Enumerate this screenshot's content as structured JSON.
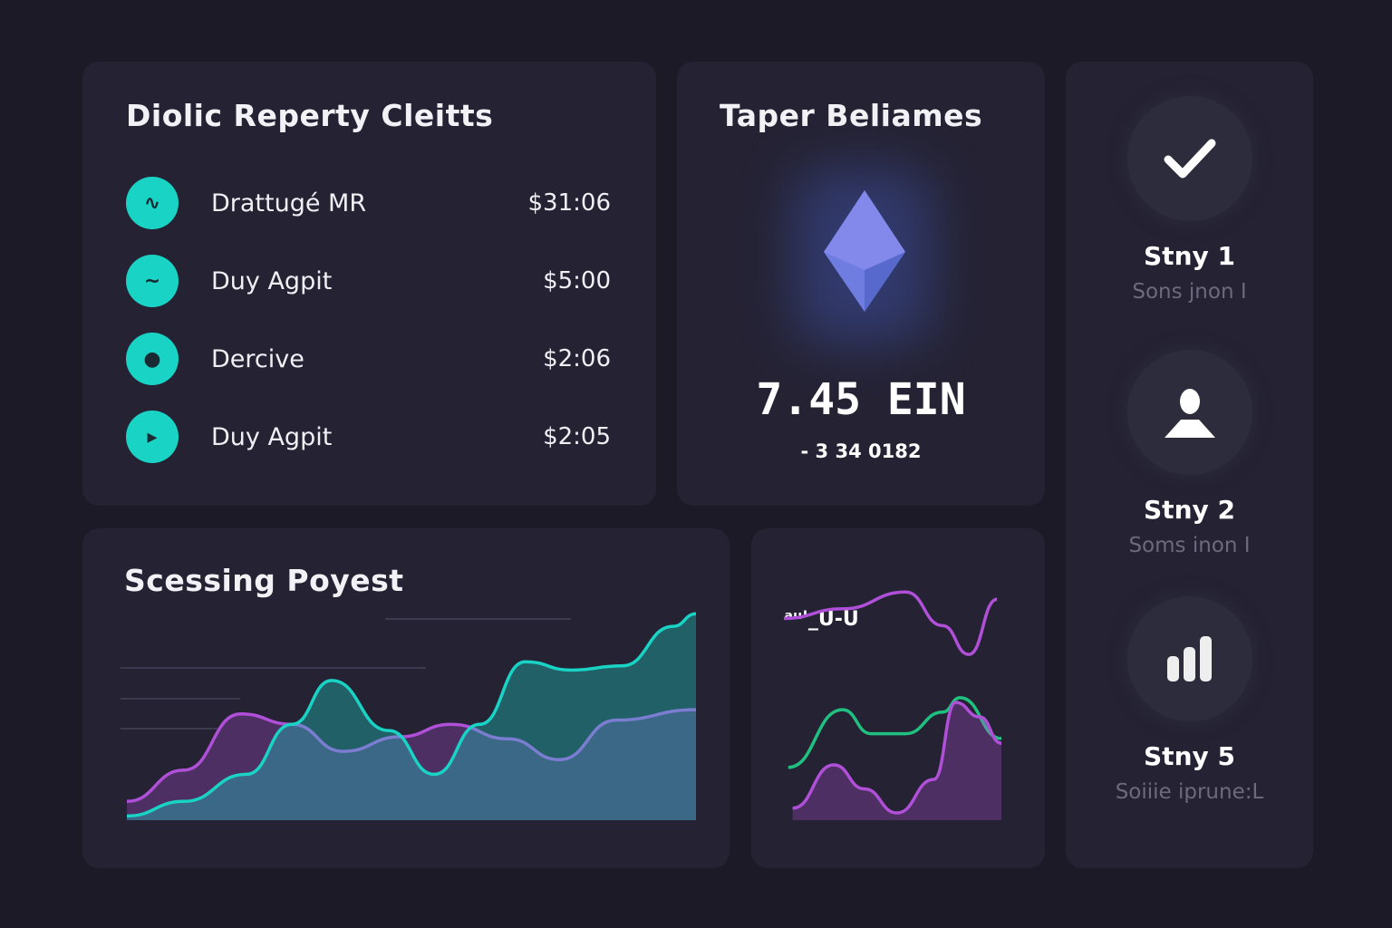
{
  "clients_panel": {
    "title": "Diolic Reperty Cleitts",
    "items": [
      {
        "icon": "wave-icon",
        "label": "Drattugé MR",
        "amount": "$31:06"
      },
      {
        "icon": "swirl-icon",
        "label": "Duy Agpit",
        "amount": "$5:00"
      },
      {
        "icon": "dot-icon",
        "label": "Dercive",
        "amount": "$2:06"
      },
      {
        "icon": "play-icon",
        "label": "Duy Agpit",
        "amount": "$2:05"
      }
    ]
  },
  "balance_panel": {
    "title": "Taper Beliames",
    "icon": "ethereum-icon",
    "value": "7.45 EIN",
    "change": "- 3 34 0182"
  },
  "steps_panel": {
    "items": [
      {
        "icon": "check-icon",
        "name": "Stny 1",
        "sub": "Sons jnon I"
      },
      {
        "icon": "user-icon",
        "name": "Stny 2",
        "sub": "Soms inon I"
      },
      {
        "icon": "bar-chart-icon",
        "name": "Stny 5",
        "sub": "Soiiie iprune:L"
      }
    ]
  },
  "colors": {
    "teal": "#19d3c5",
    "purple": "#b04fd8",
    "green": "#20c080",
    "bg": "#1b1a26",
    "panel": "#242233"
  },
  "chart_data": [
    {
      "type": "area",
      "title": "Scessing Poyest",
      "grid": true,
      "ylim": [
        0,
        100
      ],
      "xlim": [
        0,
        100
      ],
      "series": [
        {
          "color": "#b04fd8",
          "x": [
            0,
            10,
            20,
            29,
            38,
            48,
            57,
            67,
            76,
            86,
            100
          ],
          "values": [
            9,
            24,
            51,
            46,
            33,
            40,
            46,
            39,
            29,
            48,
            53
          ]
        },
        {
          "color": "#19d3c5",
          "x": [
            0,
            10,
            21,
            29,
            36,
            46,
            54,
            62,
            70,
            78,
            87,
            96,
            100
          ],
          "values": [
            2,
            9,
            22,
            46,
            67,
            43,
            22,
            46,
            76,
            72,
            74,
            93,
            99
          ]
        }
      ]
    },
    {
      "type": "line",
      "label": "ᵃᵘ'_U-U",
      "ylim": [
        0,
        100
      ],
      "xlim": [
        0,
        100
      ],
      "series": [
        {
          "color": "#b04fd8",
          "x": [
            0,
            27,
            56,
            73,
            85,
            98
          ],
          "values": [
            84,
            88,
            95,
            81,
            69,
            92
          ]
        },
        {
          "color": "#20c080",
          "x": [
            2,
            27,
            40,
            56,
            73,
            81,
            100
          ],
          "values": [
            22,
            46,
            36,
            36,
            45,
            51,
            34
          ]
        },
        {
          "color": "#b04fd8",
          "x": [
            4,
            23,
            37,
            52,
            69,
            79,
            90,
            100
          ],
          "values": [
            5,
            23,
            13,
            3,
            17,
            49,
            43,
            32
          ]
        }
      ]
    }
  ]
}
